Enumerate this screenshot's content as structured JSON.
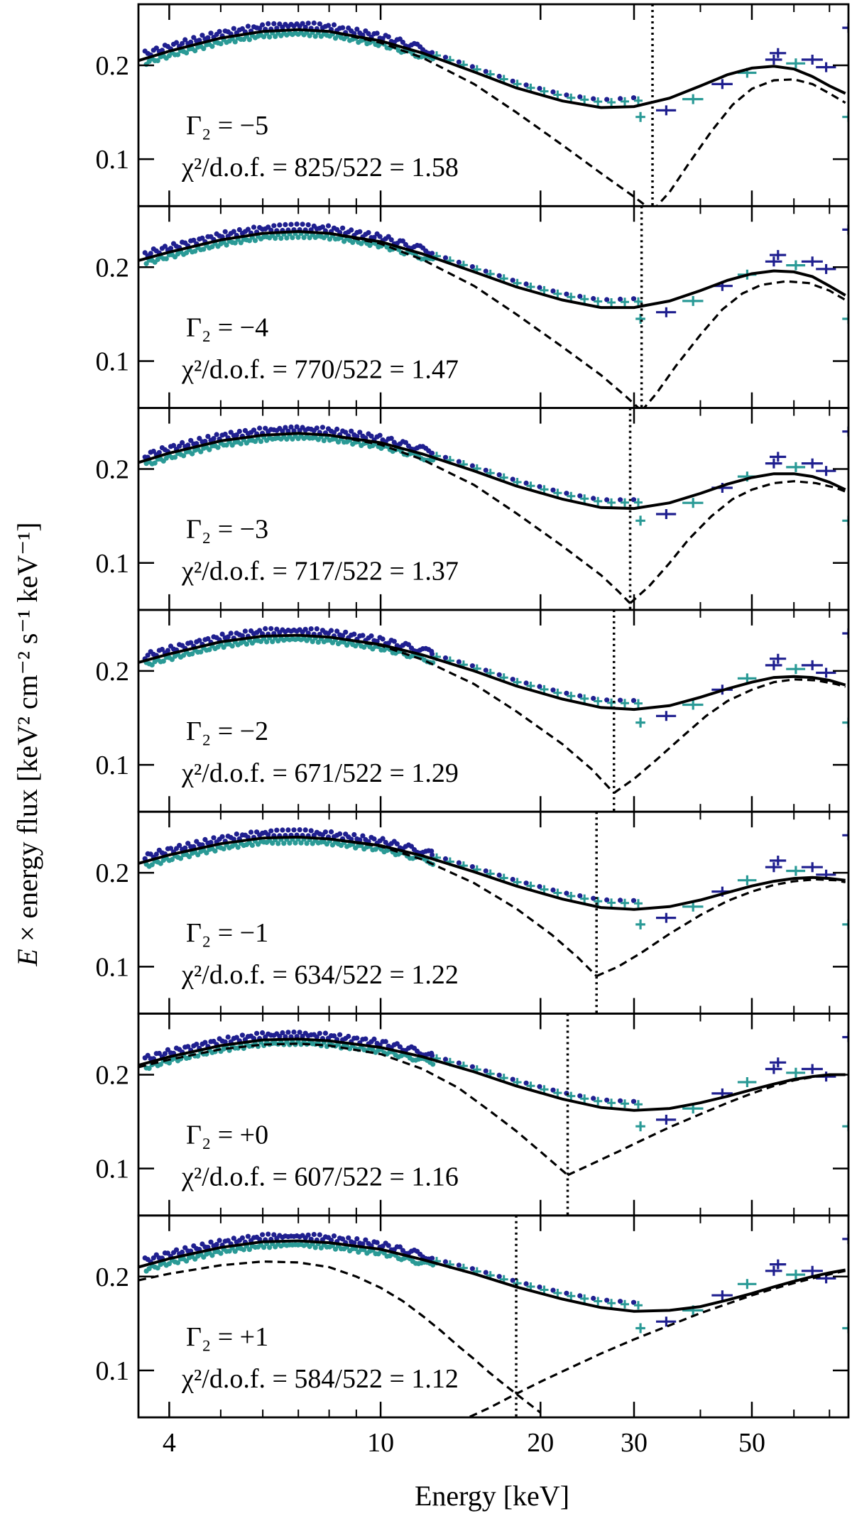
{
  "figure": {
    "ylabel_prefix": "E",
    "ylabel_mid": " × energy flux ",
    "ylabel_units": "[keV² cm⁻² s⁻¹ keV⁻¹]",
    "xlabel": "Energy [keV]",
    "colors": {
      "xmm": "#1f1f8f",
      "nustar": "#2a9a96",
      "model": "#000000"
    }
  },
  "chart_data": [
    {
      "type": "line",
      "gamma_label": "Γ₂ = −5",
      "chi_label": "χ²/d.o.f. = 825/522 = 1.58",
      "cutoff_energy": 32.5,
      "model_total": [
        [
          3.5,
          0.205
        ],
        [
          4,
          0.215
        ],
        [
          5,
          0.229
        ],
        [
          6,
          0.236
        ],
        [
          7,
          0.238
        ],
        [
          8,
          0.236
        ],
        [
          10,
          0.226
        ],
        [
          12,
          0.213
        ],
        [
          15,
          0.193
        ],
        [
          18,
          0.176
        ],
        [
          22,
          0.162
        ],
        [
          26,
          0.155
        ],
        [
          30,
          0.156
        ],
        [
          35,
          0.165
        ],
        [
          40,
          0.178
        ],
        [
          45,
          0.19
        ],
        [
          50,
          0.197
        ],
        [
          55,
          0.199
        ],
        [
          60,
          0.196
        ],
        [
          65,
          0.188
        ],
        [
          70,
          0.178
        ],
        [
          75,
          0.17
        ]
      ],
      "model_soft": [
        [
          3.5,
          0.205
        ],
        [
          4,
          0.215
        ],
        [
          5,
          0.229
        ],
        [
          6,
          0.236
        ],
        [
          7,
          0.238
        ],
        [
          8,
          0.236
        ],
        [
          10,
          0.224
        ],
        [
          12,
          0.208
        ],
        [
          15,
          0.18
        ],
        [
          18,
          0.15
        ],
        [
          22,
          0.115
        ],
        [
          26,
          0.085
        ],
        [
          30,
          0.06
        ],
        [
          32.5,
          0.045
        ]
      ],
      "model_hard": [
        [
          32.5,
          0.045
        ],
        [
          35,
          0.065
        ],
        [
          38,
          0.095
        ],
        [
          42,
          0.13
        ],
        [
          46,
          0.158
        ],
        [
          50,
          0.175
        ],
        [
          55,
          0.184
        ],
        [
          60,
          0.185
        ],
        [
          65,
          0.18
        ],
        [
          70,
          0.17
        ],
        [
          75,
          0.16
        ]
      ]
    },
    {
      "type": "line",
      "gamma_label": "Γ₂ = −4",
      "chi_label": "χ²/d.o.f. = 770/522 = 1.47",
      "cutoff_energy": 31.0,
      "model_total": [
        [
          3.5,
          0.207
        ],
        [
          4,
          0.216
        ],
        [
          5,
          0.229
        ],
        [
          6,
          0.236
        ],
        [
          7,
          0.238
        ],
        [
          8,
          0.236
        ],
        [
          10,
          0.227
        ],
        [
          12,
          0.214
        ],
        [
          15,
          0.195
        ],
        [
          18,
          0.179
        ],
        [
          22,
          0.165
        ],
        [
          26,
          0.157
        ],
        [
          30,
          0.157
        ],
        [
          35,
          0.164
        ],
        [
          40,
          0.175
        ],
        [
          45,
          0.186
        ],
        [
          50,
          0.193
        ],
        [
          55,
          0.196
        ],
        [
          60,
          0.195
        ],
        [
          65,
          0.19
        ],
        [
          70,
          0.18
        ],
        [
          75,
          0.17
        ]
      ],
      "model_soft": [
        [
          3.5,
          0.207
        ],
        [
          4,
          0.216
        ],
        [
          5,
          0.229
        ],
        [
          6,
          0.236
        ],
        [
          7,
          0.238
        ],
        [
          8,
          0.236
        ],
        [
          10,
          0.225
        ],
        [
          12,
          0.208
        ],
        [
          15,
          0.18
        ],
        [
          18,
          0.15
        ],
        [
          22,
          0.115
        ],
        [
          26,
          0.085
        ],
        [
          29,
          0.062
        ],
        [
          31,
          0.047
        ]
      ],
      "model_hard": [
        [
          31,
          0.047
        ],
        [
          33,
          0.065
        ],
        [
          36,
          0.095
        ],
        [
          40,
          0.128
        ],
        [
          44,
          0.155
        ],
        [
          48,
          0.172
        ],
        [
          52,
          0.181
        ],
        [
          58,
          0.185
        ],
        [
          64,
          0.183
        ],
        [
          70,
          0.175
        ],
        [
          75,
          0.165
        ]
      ]
    },
    {
      "type": "line",
      "gamma_label": "Γ₂ = −3",
      "chi_label": "χ²/d.o.f. = 717/522 = 1.37",
      "cutoff_energy": 29.5,
      "model_total": [
        [
          3.5,
          0.207
        ],
        [
          4,
          0.217
        ],
        [
          5,
          0.23
        ],
        [
          6,
          0.236
        ],
        [
          7,
          0.238
        ],
        [
          8,
          0.236
        ],
        [
          10,
          0.228
        ],
        [
          12,
          0.216
        ],
        [
          15,
          0.198
        ],
        [
          18,
          0.182
        ],
        [
          22,
          0.168
        ],
        [
          26,
          0.159
        ],
        [
          30,
          0.158
        ],
        [
          35,
          0.164
        ],
        [
          40,
          0.174
        ],
        [
          45,
          0.184
        ],
        [
          50,
          0.191
        ],
        [
          55,
          0.195
        ],
        [
          60,
          0.195
        ],
        [
          65,
          0.192
        ],
        [
          70,
          0.186
        ],
        [
          75,
          0.178
        ]
      ],
      "model_soft": [
        [
          3.5,
          0.207
        ],
        [
          4,
          0.217
        ],
        [
          5,
          0.23
        ],
        [
          6,
          0.236
        ],
        [
          7,
          0.238
        ],
        [
          8,
          0.236
        ],
        [
          10,
          0.226
        ],
        [
          12,
          0.21
        ],
        [
          15,
          0.183
        ],
        [
          18,
          0.153
        ],
        [
          22,
          0.118
        ],
        [
          26,
          0.087
        ],
        [
          28,
          0.07
        ],
        [
          29.5,
          0.057
        ]
      ],
      "model_hard": [
        [
          29.5,
          0.057
        ],
        [
          32,
          0.075
        ],
        [
          35,
          0.1
        ],
        [
          38,
          0.125
        ],
        [
          42,
          0.15
        ],
        [
          46,
          0.168
        ],
        [
          50,
          0.178
        ],
        [
          55,
          0.185
        ],
        [
          60,
          0.187
        ],
        [
          66,
          0.185
        ],
        [
          72,
          0.18
        ],
        [
          75,
          0.176
        ]
      ]
    },
    {
      "type": "line",
      "gamma_label": "Γ₂ = −2",
      "chi_label": "χ²/d.o.f. = 671/522 = 1.29",
      "cutoff_energy": 27.5,
      "model_total": [
        [
          3.5,
          0.209
        ],
        [
          4,
          0.218
        ],
        [
          5,
          0.231
        ],
        [
          6,
          0.237
        ],
        [
          7,
          0.238
        ],
        [
          8,
          0.236
        ],
        [
          10,
          0.228
        ],
        [
          12,
          0.217
        ],
        [
          15,
          0.2
        ],
        [
          18,
          0.184
        ],
        [
          22,
          0.17
        ],
        [
          26,
          0.161
        ],
        [
          30,
          0.159
        ],
        [
          35,
          0.163
        ],
        [
          40,
          0.172
        ],
        [
          45,
          0.181
        ],
        [
          50,
          0.188
        ],
        [
          55,
          0.193
        ],
        [
          60,
          0.194
        ],
        [
          65,
          0.193
        ],
        [
          70,
          0.19
        ],
        [
          75,
          0.185
        ]
      ],
      "model_soft": [
        [
          3.5,
          0.209
        ],
        [
          4,
          0.218
        ],
        [
          5,
          0.231
        ],
        [
          6,
          0.237
        ],
        [
          7,
          0.238
        ],
        [
          8,
          0.236
        ],
        [
          10,
          0.227
        ],
        [
          12,
          0.212
        ],
        [
          15,
          0.186
        ],
        [
          18,
          0.157
        ],
        [
          22,
          0.122
        ],
        [
          25,
          0.095
        ],
        [
          27.5,
          0.07
        ]
      ],
      "model_hard": [
        [
          27.5,
          0.07
        ],
        [
          30,
          0.085
        ],
        [
          33,
          0.105
        ],
        [
          37,
          0.13
        ],
        [
          41,
          0.152
        ],
        [
          45,
          0.168
        ],
        [
          50,
          0.18
        ],
        [
          55,
          0.188
        ],
        [
          60,
          0.191
        ],
        [
          66,
          0.19
        ],
        [
          72,
          0.186
        ],
        [
          75,
          0.183
        ]
      ]
    },
    {
      "type": "line",
      "gamma_label": "Γ₂ = −1",
      "chi_label": "χ²/d.o.f. = 634/522 = 1.22",
      "cutoff_energy": 25.5,
      "model_total": [
        [
          3.5,
          0.21
        ],
        [
          4,
          0.219
        ],
        [
          5,
          0.231
        ],
        [
          6,
          0.237
        ],
        [
          7,
          0.238
        ],
        [
          8,
          0.236
        ],
        [
          10,
          0.229
        ],
        [
          12,
          0.218
        ],
        [
          15,
          0.201
        ],
        [
          18,
          0.186
        ],
        [
          22,
          0.172
        ],
        [
          26,
          0.163
        ],
        [
          30,
          0.161
        ],
        [
          35,
          0.164
        ],
        [
          40,
          0.171
        ],
        [
          45,
          0.179
        ],
        [
          50,
          0.186
        ],
        [
          55,
          0.191
        ],
        [
          60,
          0.194
        ],
        [
          65,
          0.195
        ],
        [
          70,
          0.194
        ],
        [
          75,
          0.192
        ]
      ],
      "model_soft": [
        [
          3.5,
          0.21
        ],
        [
          4,
          0.219
        ],
        [
          5,
          0.231
        ],
        [
          6,
          0.237
        ],
        [
          7,
          0.238
        ],
        [
          8,
          0.236
        ],
        [
          10,
          0.228
        ],
        [
          12,
          0.214
        ],
        [
          15,
          0.189
        ],
        [
          18,
          0.162
        ],
        [
          21,
          0.134
        ],
        [
          23.5,
          0.11
        ],
        [
          25.5,
          0.09
        ]
      ],
      "model_hard": [
        [
          25.5,
          0.09
        ],
        [
          28,
          0.1
        ],
        [
          31,
          0.115
        ],
        [
          35,
          0.135
        ],
        [
          40,
          0.155
        ],
        [
          45,
          0.17
        ],
        [
          50,
          0.18
        ],
        [
          55,
          0.187
        ],
        [
          60,
          0.191
        ],
        [
          66,
          0.193
        ],
        [
          72,
          0.192
        ],
        [
          75,
          0.19
        ]
      ]
    },
    {
      "type": "line",
      "gamma_label": "Γ₂ = +0",
      "chi_label": "χ²/d.o.f. = 607/522 = 1.16",
      "cutoff_energy": 22.5,
      "model_total": [
        [
          3.5,
          0.21
        ],
        [
          4,
          0.219
        ],
        [
          5,
          0.231
        ],
        [
          6,
          0.237
        ],
        [
          7,
          0.238
        ],
        [
          8,
          0.236
        ],
        [
          10,
          0.229
        ],
        [
          12,
          0.219
        ],
        [
          15,
          0.203
        ],
        [
          18,
          0.188
        ],
        [
          22,
          0.174
        ],
        [
          26,
          0.165
        ],
        [
          30,
          0.162
        ],
        [
          35,
          0.164
        ],
        [
          40,
          0.17
        ],
        [
          45,
          0.177
        ],
        [
          50,
          0.184
        ],
        [
          55,
          0.19
        ],
        [
          60,
          0.195
        ],
        [
          65,
          0.198
        ],
        [
          70,
          0.2
        ],
        [
          75,
          0.2
        ]
      ],
      "model_soft": [
        [
          3.5,
          0.208
        ],
        [
          4,
          0.216
        ],
        [
          5,
          0.227
        ],
        [
          6,
          0.232
        ],
        [
          7,
          0.233
        ],
        [
          8,
          0.231
        ],
        [
          10,
          0.222
        ],
        [
          12,
          0.206
        ],
        [
          14,
          0.186
        ],
        [
          16,
          0.162
        ],
        [
          18,
          0.14
        ],
        [
          20,
          0.118
        ],
        [
          22.5,
          0.093
        ]
      ],
      "model_hard": [
        [
          22.5,
          0.093
        ],
        [
          25,
          0.105
        ],
        [
          28,
          0.118
        ],
        [
          31,
          0.13
        ],
        [
          35,
          0.144
        ],
        [
          40,
          0.158
        ],
        [
          45,
          0.17
        ],
        [
          50,
          0.18
        ],
        [
          55,
          0.188
        ],
        [
          60,
          0.194
        ],
        [
          66,
          0.198
        ],
        [
          72,
          0.2
        ],
        [
          75,
          0.2
        ]
      ]
    },
    {
      "type": "line",
      "gamma_label": "Γ₂ = +1",
      "chi_label": "χ²/d.o.f. = 584/522 = 1.12",
      "cutoff_energy": 18.0,
      "model_total": [
        [
          3.5,
          0.21
        ],
        [
          4,
          0.219
        ],
        [
          5,
          0.231
        ],
        [
          6,
          0.237
        ],
        [
          7,
          0.238
        ],
        [
          8,
          0.236
        ],
        [
          10,
          0.229
        ],
        [
          12,
          0.218
        ],
        [
          15,
          0.203
        ],
        [
          18,
          0.189
        ],
        [
          22,
          0.176
        ],
        [
          26,
          0.167
        ],
        [
          30,
          0.163
        ],
        [
          35,
          0.164
        ],
        [
          40,
          0.168
        ],
        [
          45,
          0.175
        ],
        [
          50,
          0.182
        ],
        [
          55,
          0.189
        ],
        [
          60,
          0.195
        ],
        [
          65,
          0.2
        ],
        [
          70,
          0.204
        ],
        [
          75,
          0.207
        ]
      ],
      "model_soft": [
        [
          3.5,
          0.196
        ],
        [
          4,
          0.203
        ],
        [
          5,
          0.212
        ],
        [
          6,
          0.216
        ],
        [
          7,
          0.215
        ],
        [
          8,
          0.21
        ],
        [
          9,
          0.2
        ],
        [
          10,
          0.188
        ],
        [
          11,
          0.174
        ],
        [
          12,
          0.158
        ],
        [
          13,
          0.142
        ],
        [
          14,
          0.126
        ],
        [
          15,
          0.112
        ],
        [
          16,
          0.098
        ],
        [
          17,
          0.086
        ],
        [
          18,
          0.075
        ],
        [
          20,
          0.055
        ]
      ],
      "model_hard": [
        [
          14,
          0.045
        ],
        [
          16,
          0.06
        ],
        [
          18,
          0.075
        ],
        [
          20,
          0.088
        ],
        [
          23,
          0.104
        ],
        [
          26,
          0.118
        ],
        [
          30,
          0.133
        ],
        [
          35,
          0.148
        ],
        [
          40,
          0.161
        ],
        [
          45,
          0.171
        ],
        [
          50,
          0.18
        ],
        [
          55,
          0.187
        ],
        [
          60,
          0.193
        ],
        [
          66,
          0.199
        ],
        [
          72,
          0.204
        ],
        [
          75,
          0.206
        ]
      ]
    }
  ],
  "axes": {
    "x_scale": "log",
    "xlim": [
      3.5,
      76
    ],
    "ylim": [
      0.05,
      0.265
    ],
    "x_ticks": [
      4,
      10,
      20,
      30,
      50
    ],
    "x_tick_labels": [
      "4",
      "10",
      "20",
      "30",
      "50"
    ],
    "x_minor": [
      5,
      6,
      7,
      8,
      9,
      40,
      60,
      70
    ],
    "y_ticks": [
      0.1,
      0.2
    ],
    "y_tick_labels": [
      "0.1",
      "0.2"
    ]
  }
}
